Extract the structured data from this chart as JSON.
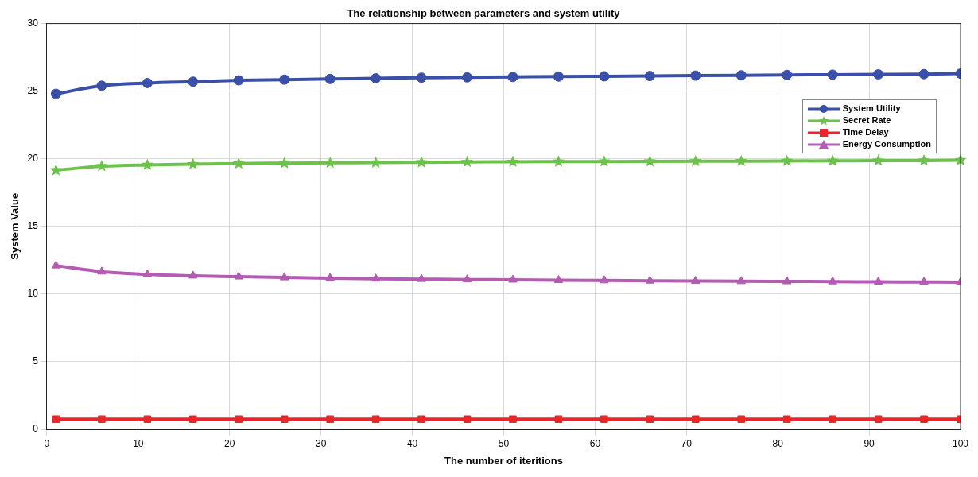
{
  "chart_data": {
    "type": "line",
    "title": "The relationship between parameters and system utility",
    "xlabel": "The number of iteritions",
    "ylabel": "System Value",
    "x": [
      1,
      6,
      11,
      16,
      21,
      26,
      31,
      36,
      41,
      46,
      51,
      56,
      61,
      66,
      71,
      76,
      81,
      86,
      91,
      96,
      100
    ],
    "xlim": [
      0,
      100
    ],
    "xticks": [
      0,
      10,
      20,
      30,
      40,
      50,
      60,
      70,
      80,
      90,
      100
    ],
    "ylim": [
      0,
      30
    ],
    "yticks": [
      0,
      5,
      10,
      15,
      20,
      25,
      30
    ],
    "grid": true,
    "legend": "top right",
    "series": [
      {
        "name": "System Utility",
        "color": "#3a4fa8",
        "marker": "circle",
        "values": [
          24.8,
          25.4,
          25.6,
          25.7,
          25.8,
          25.85,
          25.9,
          25.95,
          26.0,
          26.02,
          26.05,
          26.08,
          26.1,
          26.12,
          26.15,
          26.17,
          26.2,
          26.22,
          26.24,
          26.26,
          26.3
        ]
      },
      {
        "name": "Secret Rate",
        "color": "#6cc24a",
        "marker": "star",
        "values": [
          19.15,
          19.45,
          19.55,
          19.6,
          19.65,
          19.68,
          19.7,
          19.72,
          19.74,
          19.76,
          19.78,
          19.79,
          19.8,
          19.81,
          19.82,
          19.83,
          19.84,
          19.85,
          19.86,
          19.87,
          19.9
        ]
      },
      {
        "name": "Time Delay",
        "color": "#e8262b",
        "marker": "square",
        "values": [
          0.75,
          0.75,
          0.75,
          0.75,
          0.75,
          0.75,
          0.75,
          0.75,
          0.75,
          0.75,
          0.75,
          0.75,
          0.75,
          0.75,
          0.75,
          0.75,
          0.75,
          0.75,
          0.75,
          0.75,
          0.75
        ]
      },
      {
        "name": "Energy Consumption",
        "color": "#b45bb4",
        "marker": "triangle",
        "values": [
          12.1,
          11.65,
          11.45,
          11.35,
          11.28,
          11.22,
          11.17,
          11.13,
          11.1,
          11.07,
          11.05,
          11.02,
          11.0,
          10.98,
          10.96,
          10.94,
          10.93,
          10.92,
          10.9,
          10.89,
          10.87
        ]
      }
    ]
  }
}
